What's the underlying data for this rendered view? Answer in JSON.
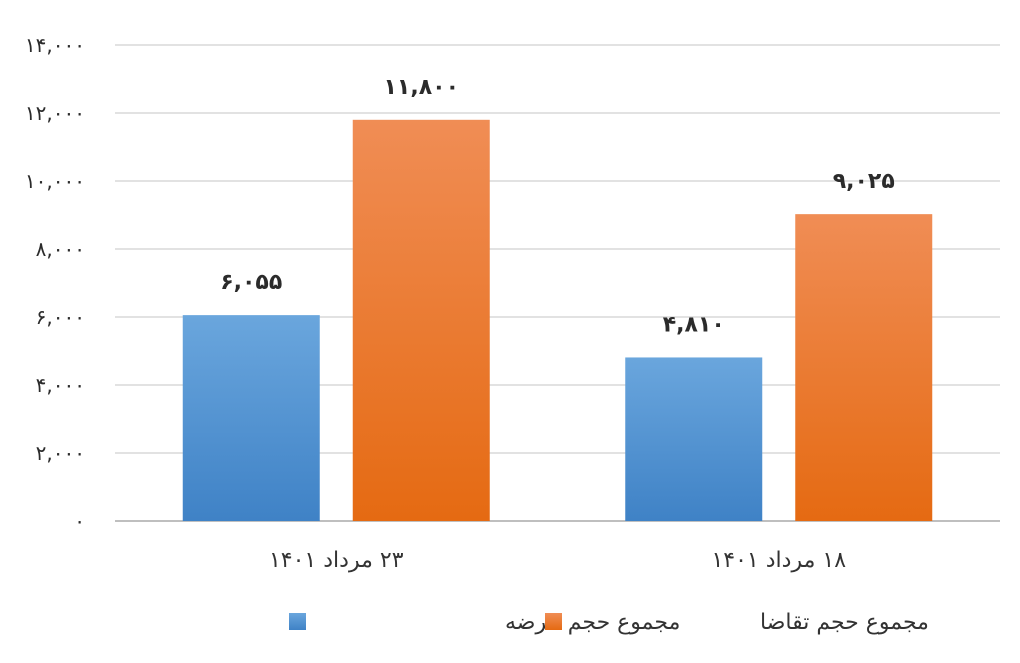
{
  "chart_data": {
    "type": "bar",
    "categories": [
      "۲۳ مرداد ۱۴۰۱",
      "۱۸ مرداد ۱۴۰۱"
    ],
    "series": [
      {
        "name": "مجموع حجم عرضه",
        "values": [
          6055,
          4810
        ],
        "labels": [
          "۶,۰۵۵",
          "۴,۸۱۰"
        ],
        "color": "#5b9bd5"
      },
      {
        "name": "مجموع حجم تقاضا",
        "values": [
          11800,
          9025
        ],
        "labels": [
          "۱۱,۸۰۰",
          "۹,۰۲۵"
        ],
        "color": "#ed7d31"
      }
    ],
    "ylim": [
      0,
      14000
    ],
    "yticks": [
      0,
      2000,
      4000,
      6000,
      8000,
      10000,
      12000,
      14000
    ],
    "ytick_labels": [
      "۰",
      "۲,۰۰۰",
      "۴,۰۰۰",
      "۶,۰۰۰",
      "۸,۰۰۰",
      "۱۰,۰۰۰",
      "۱۲,۰۰۰",
      "۱۴,۰۰۰"
    ],
    "grid": true,
    "legend_position": "bottom",
    "title": "",
    "xlabel": "",
    "ylabel": ""
  }
}
